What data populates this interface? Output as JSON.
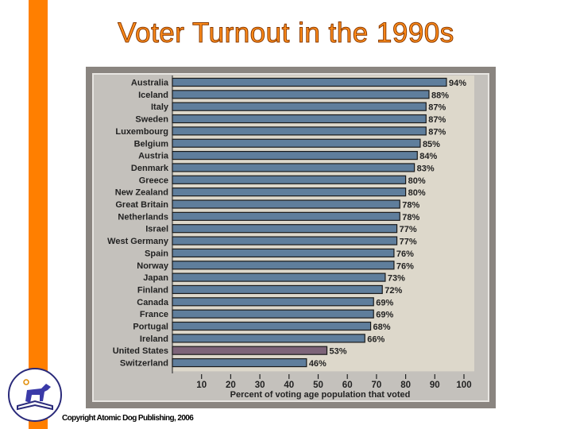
{
  "slide": {
    "title": "Voter Turnout in the 1990s",
    "copyright": "Copyright Atomic Dog Publishing, 2006",
    "accent_color": "#ff7f00"
  },
  "chart_data": {
    "type": "bar",
    "orientation": "horizontal",
    "title": "",
    "xlabel": "Percent of voting age population that voted",
    "ylabel": "",
    "xlim": [
      0,
      100
    ],
    "xticks": [
      10,
      20,
      30,
      40,
      50,
      60,
      70,
      80,
      90,
      100
    ],
    "grid": false,
    "categories": [
      "Australia",
      "Iceland",
      "Italy",
      "Sweden",
      "Luxembourg",
      "Belgium",
      "Austria",
      "Denmark",
      "Greece",
      "New Zealand",
      "Great Britain",
      "Netherlands",
      "Israel",
      "West Germany",
      "Spain",
      "Norway",
      "Japan",
      "Finland",
      "Canada",
      "France",
      "Portugal",
      "Ireland",
      "United States",
      "Switzerland"
    ],
    "values": [
      94,
      88,
      87,
      87,
      87,
      85,
      84,
      83,
      80,
      80,
      78,
      78,
      77,
      77,
      76,
      76,
      73,
      72,
      69,
      69,
      68,
      66,
      53,
      46
    ],
    "labels": [
      "94%",
      "88%",
      "87%",
      "87%",
      "87%",
      "85%",
      "84%",
      "83%",
      "80%",
      "80%",
      "78%",
      "78%",
      "77%",
      "77%",
      "76%",
      "76%",
      "73%",
      "72%",
      "69%",
      "69%",
      "68%",
      "66%",
      "53%",
      "46%"
    ],
    "bar_color": "#5f7e9c",
    "highlight": {
      "category": "United States",
      "color": "#7d6479"
    },
    "plot_background": "#ddd8cb"
  }
}
